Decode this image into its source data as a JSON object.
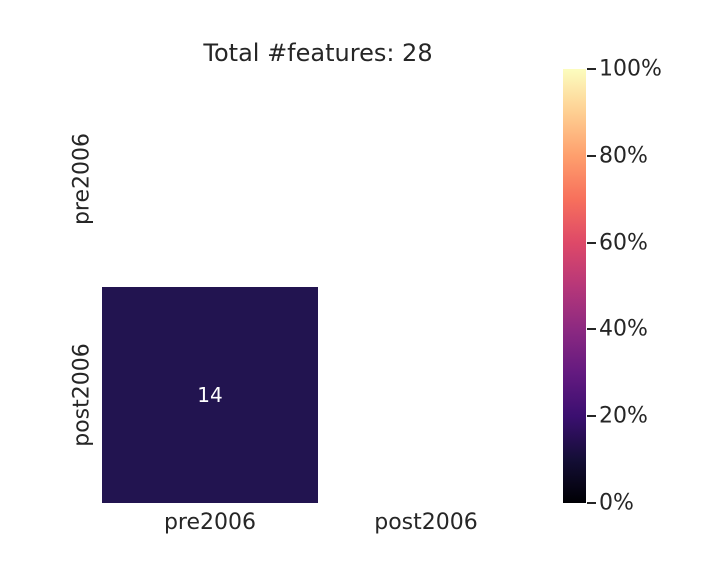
{
  "chart_data": {
    "type": "heatmap",
    "title": "Total #features: 28",
    "x_labels": [
      "pre2006",
      "post2006"
    ],
    "y_labels": [
      "pre2006",
      "post2006"
    ],
    "rows": [
      [
        null,
        null
      ],
      [
        14,
        null
      ]
    ],
    "annotations": [
      {
        "row": "post2006",
        "col": "pre2006",
        "text": "14"
      }
    ],
    "colorbar": {
      "colormap": "magma",
      "position": "right",
      "ticks": [
        {
          "label": "0%",
          "value": 0
        },
        {
          "label": "20%",
          "value": 20
        },
        {
          "label": "40%",
          "value": 40
        },
        {
          "label": "60%",
          "value": 60
        },
        {
          "label": "80%",
          "value": 80
        },
        {
          "label": "100%",
          "value": 100
        }
      ],
      "gradient": [
        {
          "pos": 0.0,
          "color": "#000004"
        },
        {
          "pos": 0.1,
          "color": "#140e36"
        },
        {
          "pos": 0.2,
          "color": "#3b0f70"
        },
        {
          "pos": 0.3,
          "color": "#641a80"
        },
        {
          "pos": 0.4,
          "color": "#8c2981"
        },
        {
          "pos": 0.5,
          "color": "#b73779"
        },
        {
          "pos": 0.6,
          "color": "#de4968"
        },
        {
          "pos": 0.7,
          "color": "#f7705c"
        },
        {
          "pos": 0.8,
          "color": "#fe9f6d"
        },
        {
          "pos": 0.9,
          "color": "#fecf92"
        },
        {
          "pos": 1.0,
          "color": "#fcfdbf"
        }
      ]
    }
  },
  "colors": {
    "background": "#ffffff",
    "text": "#262626",
    "filled_cell": "#221450",
    "annotation_text": "#ffffff"
  }
}
